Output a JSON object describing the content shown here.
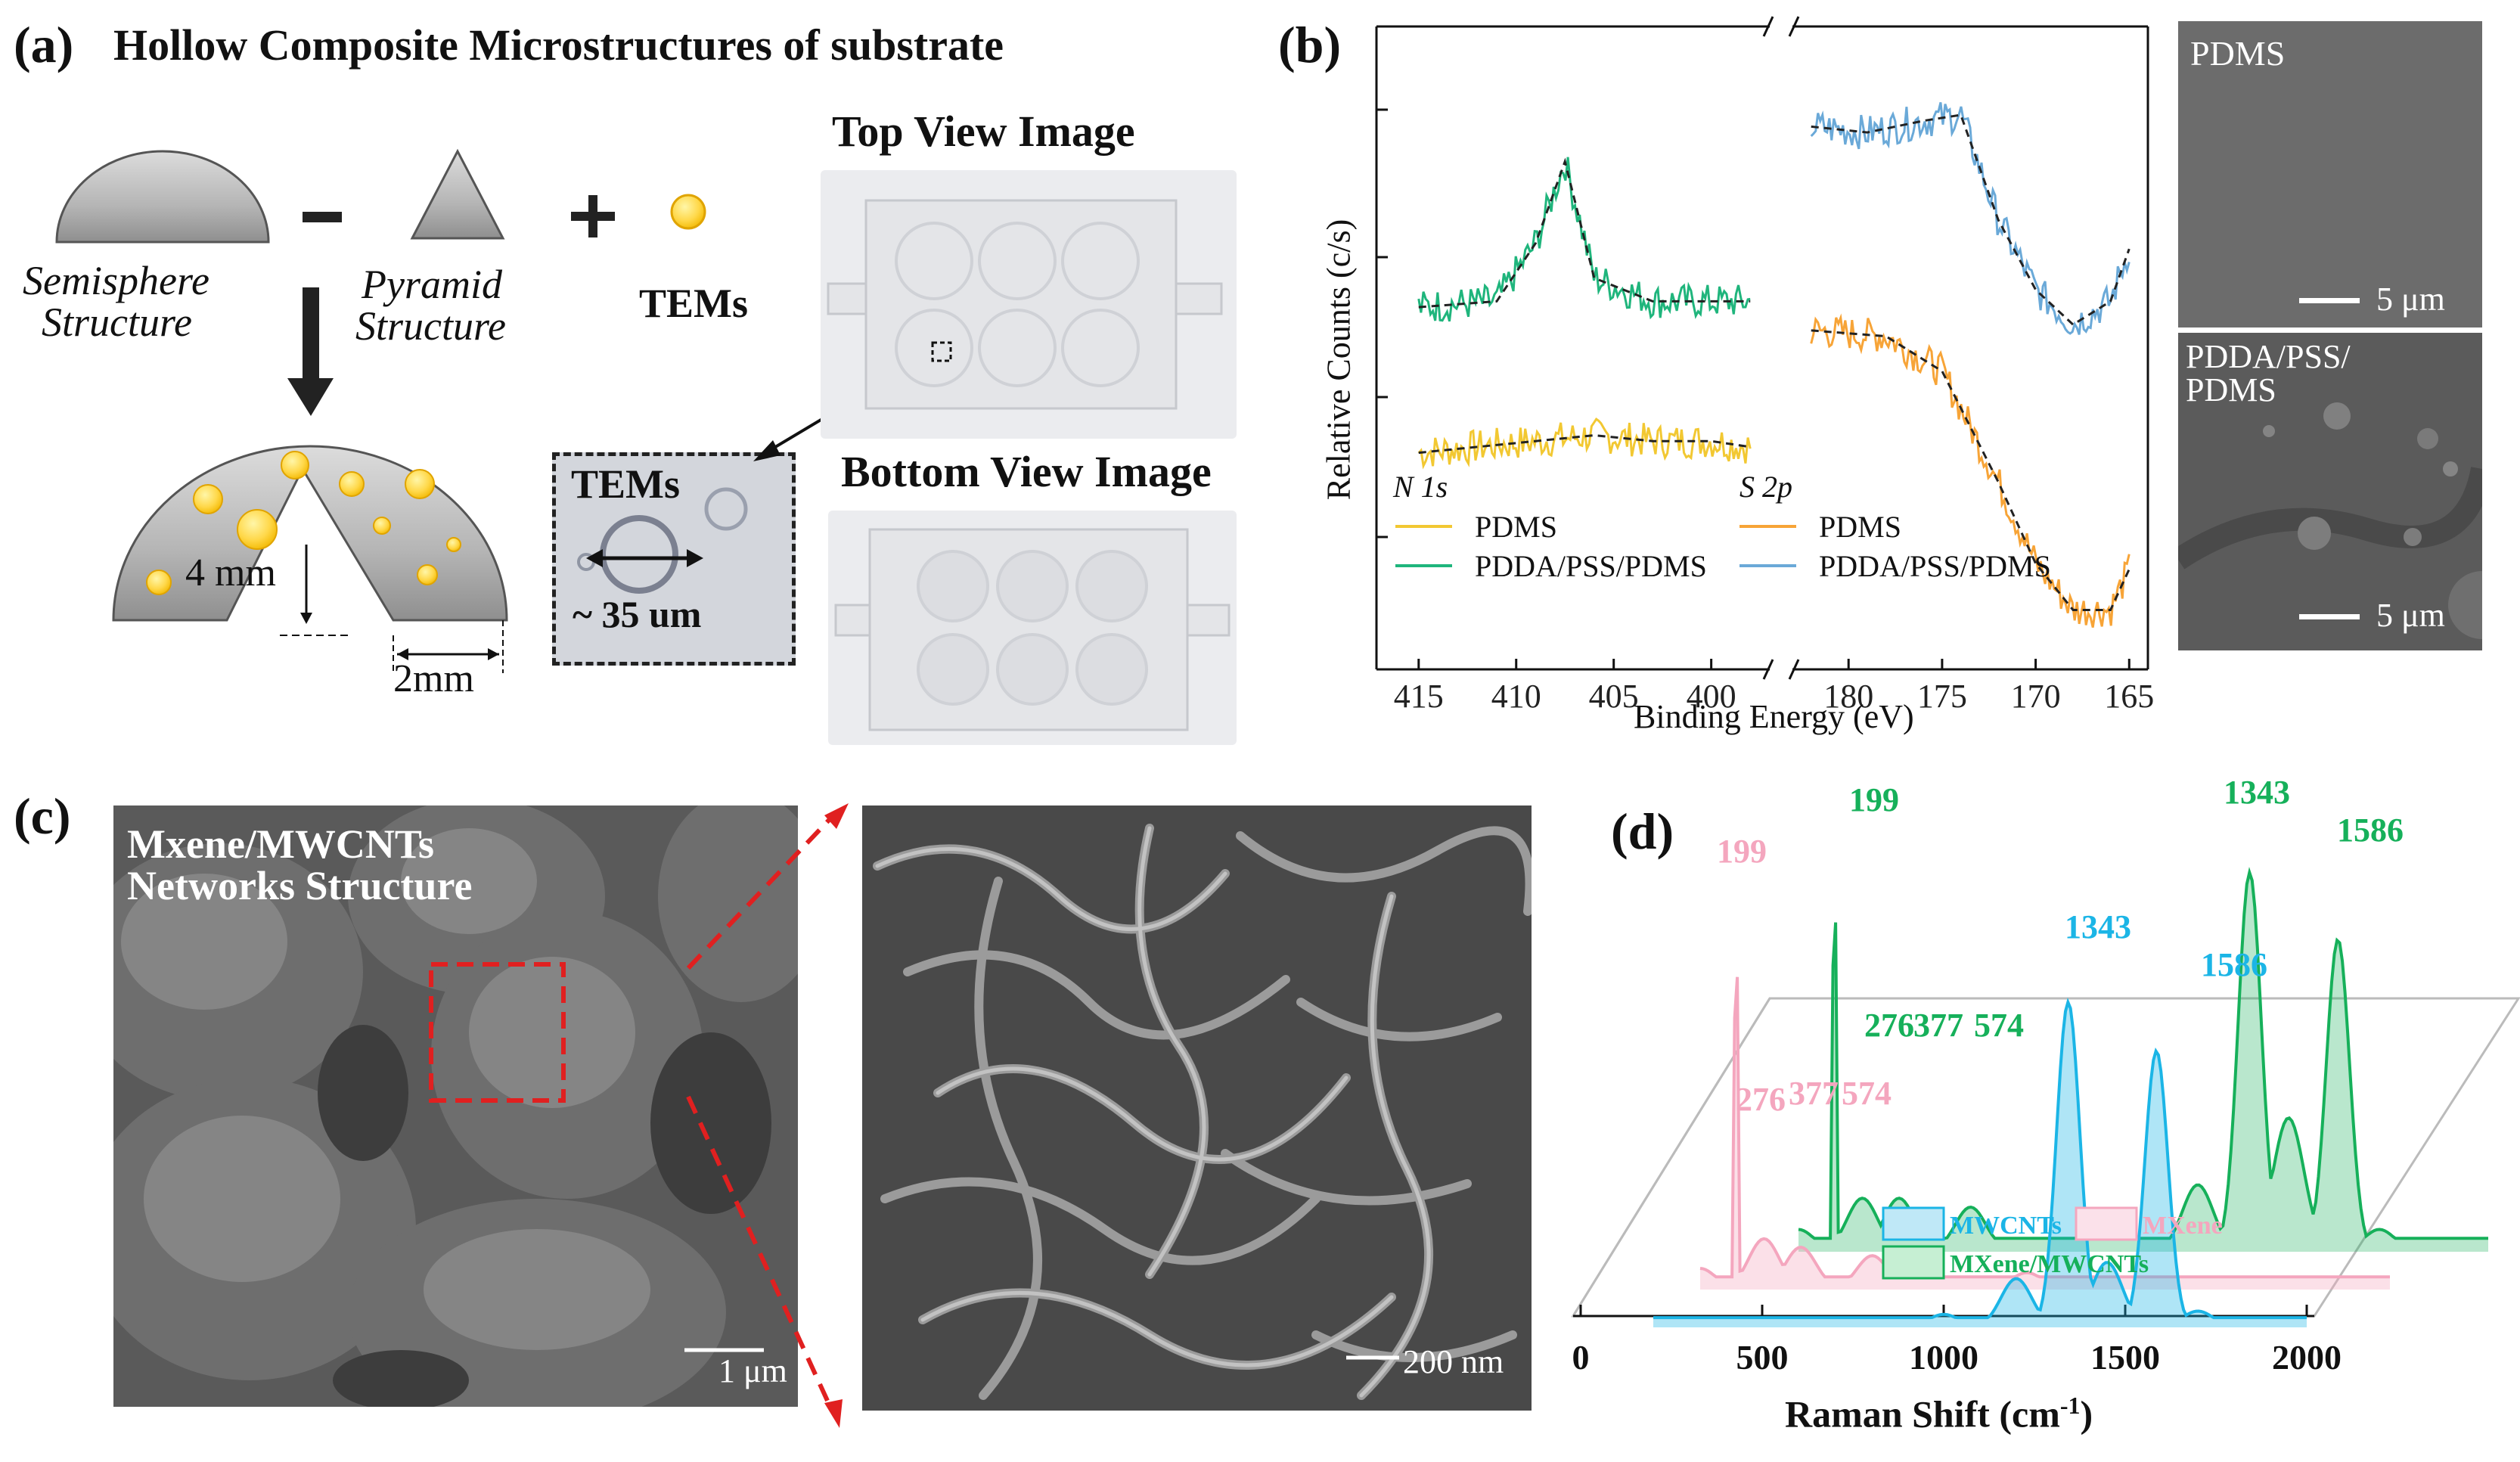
{
  "panel_a": {
    "letter": "(a)",
    "title": "Hollow Composite Microstructures of substrate",
    "minus": "−",
    "plus": "+",
    "semisphere_label_1": "Semisphere",
    "semisphere_label_2": "Structure",
    "pyramid_label_1": "Pyramid",
    "pyramid_label_2": "Structure",
    "tems_label": "TEMs",
    "dim_height": "4 mm",
    "dim_width": "2mm",
    "inset_title": "TEMs",
    "inset_size": "~ 35 um",
    "top_view": "Top View Image",
    "bottom_view": "Bottom View Image"
  },
  "panel_b": {
    "letter": "(b)",
    "ylabel": "Relative Counts (c/s)",
    "xlabel": "Binding Energy (eV)",
    "n1s_label": "N 1s",
    "s2p_label": "S 2p",
    "legend_n1s": [
      {
        "name": "PDMS",
        "color": "#f2c832"
      },
      {
        "name": "PDDA/PSS/PDMS",
        "color": "#1fb57c"
      }
    ],
    "legend_s2p": [
      {
        "name": "PDMS",
        "color": "#f7a437"
      },
      {
        "name": "PDDA/PSS/PDMS",
        "color": "#6aa9d8"
      }
    ],
    "sem_top_label": "PDMS",
    "sem_bottom_label_1": "PDDA/PSS/",
    "sem_bottom_label_2": "PDMS",
    "scale_top": "5 μm",
    "scale_bottom": "5 μm"
  },
  "panel_c": {
    "letter": "(c)",
    "overlay_1": "Mxene/MWCNTs",
    "overlay_2": "Networks Structure",
    "scale_left": "1 μm",
    "scale_right": "200 nm"
  },
  "panel_d": {
    "letter": "(d)",
    "xlabel": "Raman Shift (cm",
    "xlabel_sup": "-1",
    "xlabel_end": ")",
    "legend": [
      {
        "name": "MWCNTs",
        "color": "#1bb5e6"
      },
      {
        "name": "MXene",
        "color": "#f4a6be"
      },
      {
        "name": "MXene/MWCNTs",
        "color": "#16b05a"
      }
    ],
    "peak_labels_green": [
      "199",
      "276",
      "377",
      "574",
      "1343",
      "1586"
    ],
    "peak_labels_pink": [
      "199",
      "276",
      "377",
      "574"
    ],
    "peak_labels_blue": [
      "1343",
      "1586"
    ]
  },
  "chart_data": [
    {
      "type": "line",
      "panel": "b",
      "xlabel": "Binding Energy (eV)",
      "ylabel": "Relative Counts (c/s)",
      "x_ticks_left": [
        415,
        410,
        405,
        400
      ],
      "x_ticks_right": [
        180,
        175,
        170,
        165
      ],
      "axis_break": "between 397 and 183 eV",
      "series": [
        {
          "name": "PDMS",
          "region": "N 1s",
          "x": [
            415,
            412,
            409,
            406,
            403,
            400,
            398
          ],
          "y": [
            0.32,
            0.33,
            0.34,
            0.35,
            0.34,
            0.34,
            0.33
          ]
        },
        {
          "name": "PDDA/PSS/PDMS",
          "region": "N 1s",
          "x": [
            415,
            411,
            409,
            407.5,
            406,
            403,
            400,
            398
          ],
          "y": [
            0.57,
            0.58,
            0.68,
            0.82,
            0.62,
            0.58,
            0.58,
            0.58
          ]
        },
        {
          "name": "PDMS",
          "region": "S 2p",
          "x": [
            182,
            178,
            175,
            172,
            170,
            168,
            166,
            165
          ],
          "y": [
            0.53,
            0.52,
            0.46,
            0.27,
            0.13,
            0.05,
            0.05,
            0.12
          ]
        },
        {
          "name": "PDDA/PSS/PDMS",
          "region": "S 2p",
          "x": [
            182,
            179,
            176,
            174,
            172,
            170,
            168,
            166,
            165
          ],
          "y": [
            0.88,
            0.87,
            0.89,
            0.9,
            0.72,
            0.6,
            0.54,
            0.58,
            0.67
          ]
        }
      ]
    },
    {
      "type": "line",
      "panel": "d",
      "xlabel": "Raman Shift (cm-1)",
      "x_ticks": [
        0,
        500,
        1000,
        1500,
        2000
      ],
      "layout": "3D waterfall",
      "series": [
        {
          "name": "MWCNTs",
          "x": [
            200,
            1000,
            1200,
            1343,
            1450,
            1586,
            1700,
            2000
          ],
          "y": [
            0.02,
            0.04,
            0.15,
            1.0,
            0.2,
            0.85,
            0.05,
            0.02
          ]
        },
        {
          "name": "MXene",
          "x": [
            100,
            199,
            276,
            377,
            574,
            1000,
            2000
          ],
          "y": [
            0.05,
            1.0,
            0.12,
            0.1,
            0.08,
            0.04,
            0.03
          ]
        },
        {
          "name": "MXene/MWCNTs",
          "x": [
            100,
            199,
            276,
            377,
            574,
            1200,
            1343,
            1450,
            1586,
            1700,
            2000
          ],
          "y": [
            0.05,
            1.0,
            0.12,
            0.12,
            0.1,
            0.15,
            0.85,
            0.3,
            0.7,
            0.05,
            0.03
          ]
        }
      ]
    }
  ]
}
